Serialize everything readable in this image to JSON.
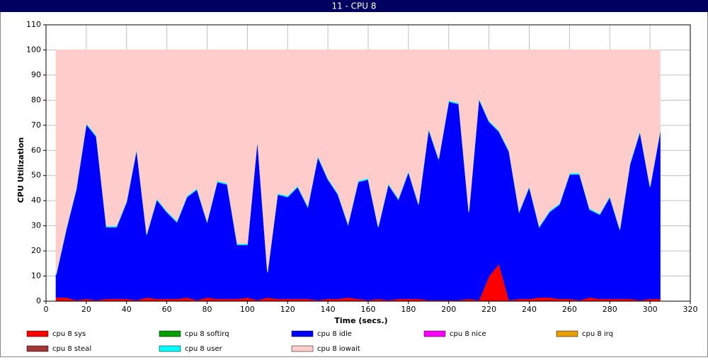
{
  "chart_data": {
    "type": "stacked-area",
    "title": "11 - CPU 8",
    "x_label": "Time (secs.)",
    "y_label": "CPU Utilization",
    "x": [
      5,
      10,
      15,
      20,
      25,
      30,
      35,
      40,
      45,
      50,
      55,
      60,
      65,
      70,
      75,
      80,
      85,
      90,
      95,
      100,
      105,
      110,
      115,
      120,
      125,
      130,
      135,
      140,
      145,
      150,
      155,
      160,
      165,
      170,
      175,
      180,
      185,
      190,
      195,
      200,
      205,
      210,
      215,
      220,
      225,
      230,
      235,
      240,
      245,
      250,
      255,
      260,
      265,
      270,
      275,
      280,
      285,
      290,
      295,
      300,
      305
    ],
    "xlim": [
      0,
      320
    ],
    "xticks": [
      0,
      20,
      40,
      60,
      80,
      100,
      120,
      140,
      160,
      180,
      200,
      220,
      240,
      260,
      280,
      300,
      320
    ],
    "ylim": [
      0,
      110
    ],
    "yticks": [
      0,
      10,
      20,
      30,
      40,
      50,
      60,
      70,
      80,
      90,
      100,
      110
    ],
    "grid": true,
    "series": [
      {
        "name": "cpu 8 sys",
        "color": "#ff0000",
        "values": [
          1.5,
          1.5,
          0.5,
          1,
          0.5,
          1,
          1,
          1,
          0.5,
          1.5,
          1,
          1,
          1,
          1.5,
          0.5,
          1.5,
          1,
          1,
          1,
          1.5,
          0.5,
          1.5,
          1,
          1,
          1,
          1,
          0.5,
          1,
          1,
          1.5,
          1,
          0.5,
          1,
          0.5,
          1,
          1,
          1,
          0.5,
          0.5,
          0.5,
          0.5,
          1,
          0.5,
          10,
          15,
          0.5,
          1,
          1,
          1.5,
          1.5,
          1,
          1,
          0.5,
          1.5,
          1,
          1,
          1,
          1,
          0.5,
          1,
          1
        ]
      },
      {
        "name": "cpu 8 softirq",
        "color": "#00a000",
        "values": [
          0,
          0,
          0,
          0,
          0,
          0,
          0,
          0,
          0,
          0,
          0,
          0,
          0,
          0,
          0,
          0,
          0,
          0,
          0,
          0,
          0,
          0,
          0,
          0,
          0,
          0,
          0,
          0,
          0,
          0,
          0,
          0,
          0,
          0,
          0,
          0,
          0,
          0,
          0,
          0,
          0,
          0,
          0,
          0,
          0,
          0,
          0,
          0,
          0,
          0,
          0,
          0,
          0,
          0,
          0,
          0,
          0,
          0,
          0,
          0,
          0
        ]
      },
      {
        "name": "cpu 8 idle",
        "color": "#0000ff",
        "values": [
          9,
          27,
          44,
          69.5,
          65,
          28.5,
          28.5,
          38.5,
          60,
          25,
          39.5,
          34.5,
          30.5,
          40,
          44,
          30,
          46.5,
          45.5,
          21.5,
          21,
          64,
          10,
          41.5,
          40.5,
          44.5,
          36.5,
          57,
          47.5,
          41.5,
          29,
          46.5,
          48,
          28.5,
          46,
          39.5,
          50.5,
          37.5,
          68,
          56,
          79,
          78,
          34.5,
          80,
          61.5,
          52.5,
          59,
          34.5,
          44.5,
          28,
          34,
          37.5,
          49.5,
          50,
          35,
          33.5,
          40.5,
          27.5,
          53.5,
          67,
          44.5,
          66.5
        ]
      },
      {
        "name": "cpu 8 nice",
        "color": "#ff00ff",
        "values": [
          0,
          0,
          0,
          0,
          0,
          0,
          0,
          0,
          0,
          0,
          0,
          0,
          0,
          0,
          0,
          0,
          0,
          0,
          0,
          0,
          0,
          0,
          0,
          0,
          0,
          0,
          0,
          0,
          0,
          0,
          0,
          0,
          0,
          0,
          0,
          0,
          0,
          0,
          0,
          0,
          0,
          0,
          0,
          0,
          0,
          0,
          0,
          0,
          0,
          0,
          0,
          0,
          0,
          0,
          0,
          0,
          0,
          0,
          0,
          0,
          0
        ]
      },
      {
        "name": "cpu 8 irq",
        "color": "#e8a000",
        "values": [
          0,
          0,
          0,
          0,
          0,
          0,
          0,
          0,
          0,
          0,
          0,
          0,
          0,
          0,
          0,
          0,
          0,
          0,
          0,
          0,
          0,
          0,
          0,
          0,
          0,
          0,
          0,
          0,
          0,
          0,
          0,
          0,
          0,
          0,
          0,
          0,
          0,
          0,
          0,
          0,
          0,
          0,
          0,
          0,
          0,
          0,
          0,
          0,
          0,
          0,
          0,
          0,
          0,
          0,
          0,
          0,
          0,
          0,
          0,
          0,
          0
        ]
      },
      {
        "name": "cpu 8 steal",
        "color": "#a03838",
        "values": [
          0,
          0,
          0,
          0,
          0,
          0,
          0,
          0,
          0,
          0,
          0,
          0,
          0,
          0,
          0,
          0,
          0,
          0,
          0,
          0,
          0,
          0,
          0,
          0,
          0,
          0,
          0,
          0,
          0,
          0,
          0,
          0,
          0,
          0,
          0,
          0,
          0,
          0,
          0,
          0,
          0,
          0,
          0,
          0,
          0,
          0,
          0,
          0,
          0,
          0,
          0,
          0,
          0,
          0,
          0,
          0,
          0,
          0,
          0,
          0,
          0
        ]
      },
      {
        "name": "cpu 8 user",
        "color": "#00ffff",
        "values": [
          0.5,
          0.5,
          0.5,
          0.5,
          0.5,
          0.5,
          0.5,
          0.5,
          0.5,
          0.5,
          0.5,
          0.5,
          0.5,
          0.5,
          0.5,
          0.5,
          0.5,
          0.5,
          0.5,
          0.5,
          0.5,
          0.5,
          0.5,
          0.5,
          0.5,
          0.5,
          0.5,
          0.5,
          0.5,
          0.5,
          0.5,
          0.5,
          0.5,
          0.5,
          0.5,
          0.5,
          0.5,
          0.5,
          0.5,
          0.5,
          0.5,
          0.5,
          0.5,
          0.5,
          0.5,
          0.5,
          0.5,
          0.5,
          0.5,
          0.5,
          0.5,
          0.5,
          0.5,
          0.5,
          0.5,
          0.5,
          0.5,
          0.5,
          0.5,
          0.5,
          0.5
        ]
      },
      {
        "name": "cpu 8 iowait",
        "color": "#ffcccc",
        "values": [
          89,
          71,
          55,
          29,
          34,
          70,
          70,
          60,
          39,
          73,
          59,
          64,
          68,
          58,
          55,
          68,
          52,
          53,
          77,
          77,
          35,
          88,
          57,
          58,
          54,
          62,
          42,
          51,
          57,
          69,
          52,
          51,
          70,
          53,
          59,
          48,
          61,
          31,
          43,
          20,
          21,
          64,
          19,
          28,
          32,
          40,
          64,
          54,
          70,
          64,
          61,
          49,
          49,
          63,
          65,
          58,
          71,
          45,
          32,
          54,
          32
        ]
      }
    ]
  }
}
